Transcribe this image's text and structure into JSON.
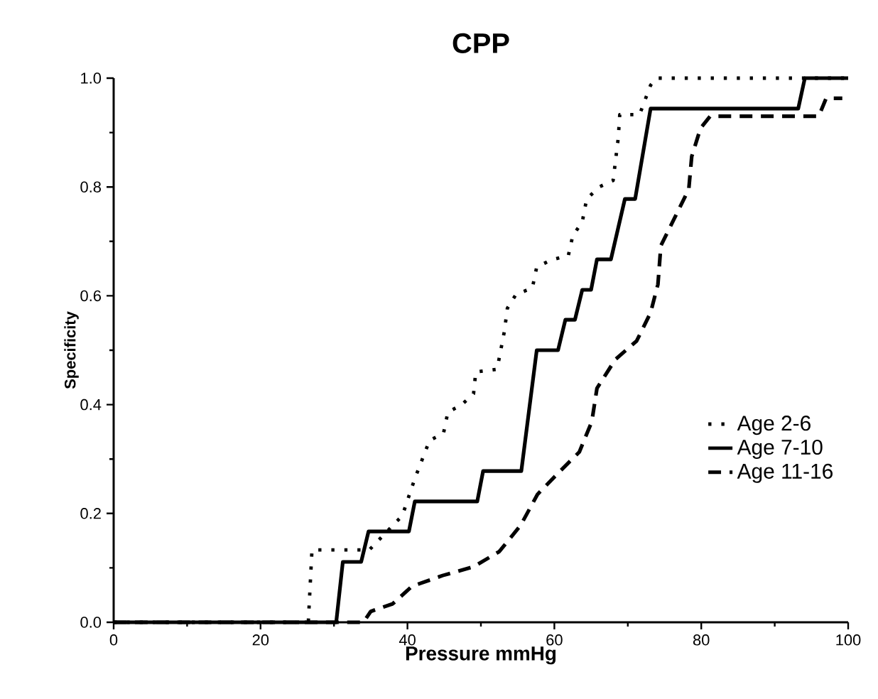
{
  "chart_data": {
    "type": "line",
    "title": "CPP",
    "xlabel": "Pressure mmHg",
    "ylabel": "Specificity",
    "xlim": [
      0,
      100
    ],
    "ylim": [
      0,
      1
    ],
    "xticks": [
      0,
      20,
      40,
      60,
      80,
      100
    ],
    "yticks": [
      {
        "value": 0,
        "label": "0.0"
      },
      {
        "value": 0.2,
        "label": "0.2"
      },
      {
        "value": 0.4,
        "label": "0.4"
      },
      {
        "value": 0.6,
        "label": "0.6"
      },
      {
        "value": 0.8,
        "label": "0.8"
      },
      {
        "value": 1,
        "label": "1.0"
      }
    ],
    "grid": false,
    "legend": "right",
    "marker": "none",
    "series": [
      {
        "name": "Age 2-6",
        "color": "#000000",
        "line_style": "dotted",
        "x": [
          0,
          26.5,
          27,
          34.8,
          39.3,
          41,
          43,
          44.9,
          45.5,
          47.4,
          49,
          49.3,
          52.2,
          53.2,
          53.6,
          54.8,
          57,
          57.6,
          59.6,
          61.9,
          62.5,
          63.8,
          64.4,
          66.1,
          68,
          68.7,
          68.9,
          71.6,
          73.1,
          73.9,
          100
        ],
        "values": [
          0,
          0,
          0.133,
          0.133,
          0.196,
          0.264,
          0.334,
          0.347,
          0.386,
          0.4,
          0.42,
          0.46,
          0.465,
          0.535,
          0.577,
          0.603,
          0.614,
          0.653,
          0.666,
          0.674,
          0.71,
          0.736,
          0.778,
          0.8,
          0.812,
          0.89,
          0.933,
          0.933,
          0.987,
          1,
          1
        ]
      },
      {
        "name": "Age 7-10",
        "color": "#000000",
        "line_style": "solid",
        "x": [
          0,
          30.3,
          31.2,
          33.7,
          34.7,
          40.2,
          41,
          49.5,
          50.3,
          55.5,
          57.6,
          60.5,
          61.5,
          62.8,
          63.8,
          65,
          65.8,
          67.7,
          69.6,
          71,
          73.1,
          93.2,
          94.1,
          100
        ],
        "values": [
          0,
          0,
          0.111,
          0.111,
          0.167,
          0.167,
          0.222,
          0.222,
          0.278,
          0.278,
          0.5,
          0.5,
          0.556,
          0.556,
          0.611,
          0.611,
          0.667,
          0.667,
          0.778,
          0.778,
          0.944,
          0.944,
          1,
          1
        ]
      },
      {
        "name": "Age 11-16",
        "color": "#000000",
        "line_style": "dashed",
        "x": [
          0,
          34,
          35,
          38,
          40.6,
          44.8,
          49,
          52.5,
          55.4,
          57.7,
          60.5,
          63.4,
          65.1,
          65.8,
          68.3,
          71.2,
          73.1,
          74.1,
          74.5,
          76.4,
          78.3,
          78.7,
          79.9,
          81.2,
          96,
          97,
          99.2
        ],
        "values": [
          0,
          0,
          0.02,
          0.034,
          0.066,
          0.086,
          0.102,
          0.13,
          0.178,
          0.235,
          0.274,
          0.313,
          0.369,
          0.43,
          0.483,
          0.517,
          0.569,
          0.621,
          0.692,
          0.744,
          0.796,
          0.856,
          0.908,
          0.93,
          0.93,
          0.963,
          0.963
        ]
      }
    ]
  }
}
